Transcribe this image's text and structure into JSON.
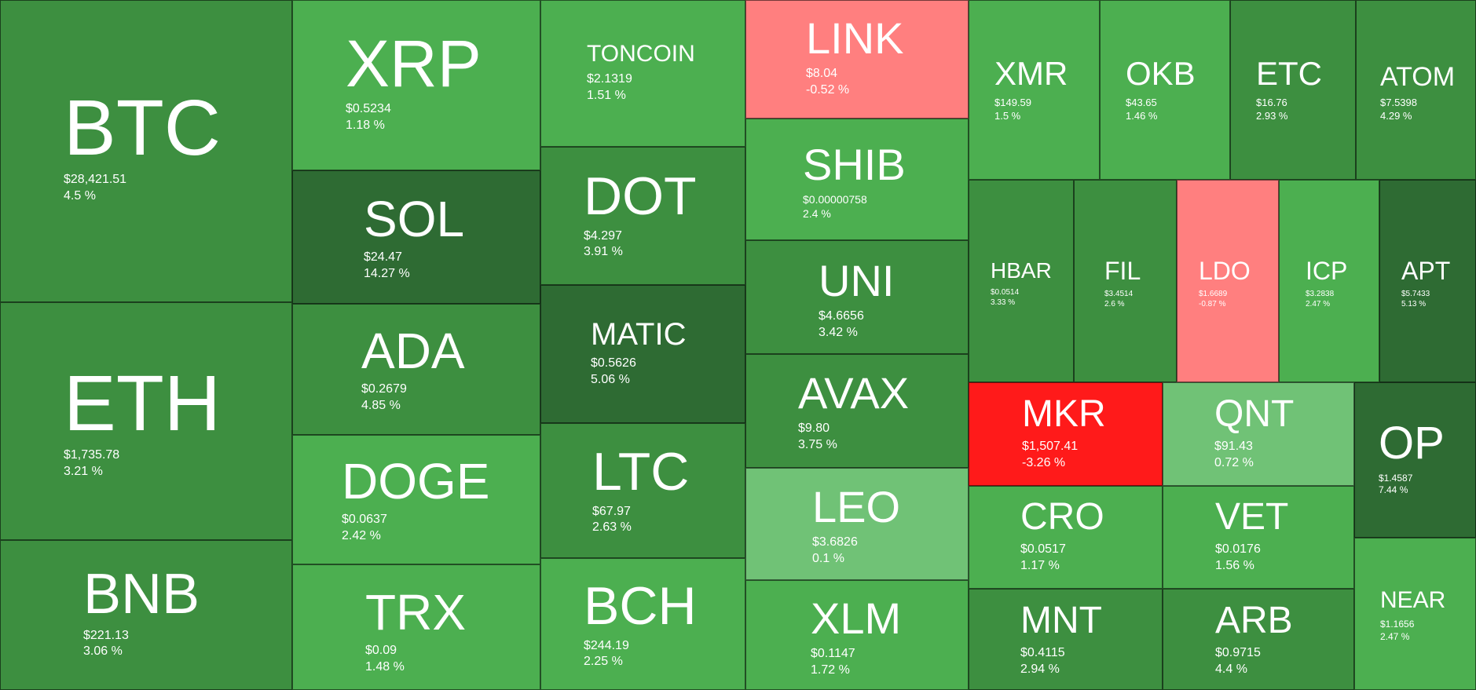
{
  "chart_data": {
    "type": "treemap",
    "title": "",
    "colors": {
      "light_green": "#70c276",
      "green": "#4caf50",
      "mid_green": "#3d8f40",
      "dark_green": "#2e6b33",
      "pink": "#ff7f7f",
      "red": "#ff1a1a"
    },
    "items": [
      {
        "symbol": "BTC",
        "price": "$28,421.51",
        "change": "4.5 %",
        "change_value": 4.5,
        "color": "#3d8f40"
      },
      {
        "symbol": "ETH",
        "price": "$1,735.78",
        "change": "3.21 %",
        "change_value": 3.21,
        "color": "#3d8f40"
      },
      {
        "symbol": "BNB",
        "price": "$221.13",
        "change": "3.06 %",
        "change_value": 3.06,
        "color": "#3d8f40"
      },
      {
        "symbol": "XRP",
        "price": "$0.5234",
        "change": "1.18 %",
        "change_value": 1.18,
        "color": "#4caf50"
      },
      {
        "symbol": "SOL",
        "price": "$24.47",
        "change": "14.27 %",
        "change_value": 14.27,
        "color": "#2e6b33"
      },
      {
        "symbol": "ADA",
        "price": "$0.2679",
        "change": "4.85 %",
        "change_value": 4.85,
        "color": "#3d8f40"
      },
      {
        "symbol": "DOGE",
        "price": "$0.0637",
        "change": "2.42 %",
        "change_value": 2.42,
        "color": "#4caf50"
      },
      {
        "symbol": "TRX",
        "price": "$0.09",
        "change": "1.48 %",
        "change_value": 1.48,
        "color": "#4caf50"
      },
      {
        "symbol": "TONCOIN",
        "price": "$2.1319",
        "change": "1.51 %",
        "change_value": 1.51,
        "color": "#4caf50"
      },
      {
        "symbol": "DOT",
        "price": "$4.297",
        "change": "3.91 %",
        "change_value": 3.91,
        "color": "#3d8f40"
      },
      {
        "symbol": "MATIC",
        "price": "$0.5626",
        "change": "5.06 %",
        "change_value": 5.06,
        "color": "#2e6b33"
      },
      {
        "symbol": "LTC",
        "price": "$67.97",
        "change": "2.63 %",
        "change_value": 2.63,
        "color": "#3d8f40"
      },
      {
        "symbol": "BCH",
        "price": "$244.19",
        "change": "2.25 %",
        "change_value": 2.25,
        "color": "#4caf50"
      },
      {
        "symbol": "LINK",
        "price": "$8.04",
        "change": "-0.52 %",
        "change_value": -0.52,
        "color": "#ff7f7f"
      },
      {
        "symbol": "SHIB",
        "price": "$0.00000758",
        "change": "2.4 %",
        "change_value": 2.4,
        "color": "#4caf50"
      },
      {
        "symbol": "UNI",
        "price": "$4.6656",
        "change": "3.42 %",
        "change_value": 3.42,
        "color": "#3d8f40"
      },
      {
        "symbol": "AVAX",
        "price": "$9.80",
        "change": "3.75 %",
        "change_value": 3.75,
        "color": "#3d8f40"
      },
      {
        "symbol": "LEO",
        "price": "$3.6826",
        "change": "0.1 %",
        "change_value": 0.1,
        "color": "#70c276"
      },
      {
        "symbol": "XLM",
        "price": "$0.1147",
        "change": "1.72 %",
        "change_value": 1.72,
        "color": "#4caf50"
      },
      {
        "symbol": "XMR",
        "price": "$149.59",
        "change": "1.5 %",
        "change_value": 1.5,
        "color": "#4caf50"
      },
      {
        "symbol": "OKB",
        "price": "$43.65",
        "change": "1.46 %",
        "change_value": 1.46,
        "color": "#4caf50"
      },
      {
        "symbol": "ETC",
        "price": "$16.76",
        "change": "2.93 %",
        "change_value": 2.93,
        "color": "#3d8f40"
      },
      {
        "symbol": "ATOM",
        "price": "$7.5398",
        "change": "4.29 %",
        "change_value": 4.29,
        "color": "#3d8f40"
      },
      {
        "symbol": "HBAR",
        "price": "$0.0514",
        "change": "3.33 %",
        "change_value": 3.33,
        "color": "#3d8f40"
      },
      {
        "symbol": "FIL",
        "price": "$3.4514",
        "change": "2.6 %",
        "change_value": 2.6,
        "color": "#3d8f40"
      },
      {
        "symbol": "LDO",
        "price": "$1.6689",
        "change": "-0.87 %",
        "change_value": -0.87,
        "color": "#ff7f7f"
      },
      {
        "symbol": "ICP",
        "price": "$3.2838",
        "change": "2.47 %",
        "change_value": 2.47,
        "color": "#4caf50"
      },
      {
        "symbol": "APT",
        "price": "$5.7433",
        "change": "5.13 %",
        "change_value": 5.13,
        "color": "#2e6b33"
      },
      {
        "symbol": "MKR",
        "price": "$1,507.41",
        "change": "-3.26 %",
        "change_value": -3.26,
        "color": "#ff1a1a"
      },
      {
        "symbol": "QNT",
        "price": "$91.43",
        "change": "0.72 %",
        "change_value": 0.72,
        "color": "#70c276"
      },
      {
        "symbol": "OP",
        "price": "$1.4587",
        "change": "7.44 %",
        "change_value": 7.44,
        "color": "#2e6b33"
      },
      {
        "symbol": "CRO",
        "price": "$0.0517",
        "change": "1.17 %",
        "change_value": 1.17,
        "color": "#4caf50"
      },
      {
        "symbol": "VET",
        "price": "$0.0176",
        "change": "1.56 %",
        "change_value": 1.56,
        "color": "#4caf50"
      },
      {
        "symbol": "MNT",
        "price": "$0.4115",
        "change": "2.94 %",
        "change_value": 2.94,
        "color": "#3d8f40"
      },
      {
        "symbol": "ARB",
        "price": "$0.9715",
        "change": "4.4 %",
        "change_value": 4.4,
        "color": "#3d8f40"
      },
      {
        "symbol": "NEAR",
        "price": "$1.1656",
        "change": "2.47 %",
        "change_value": 2.47,
        "color": "#4caf50"
      }
    ]
  }
}
